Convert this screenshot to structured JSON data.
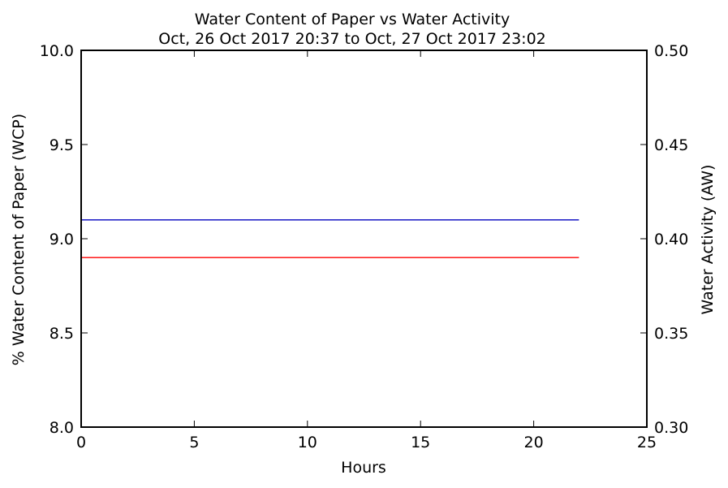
{
  "chart_data": {
    "type": "line",
    "title": "Water Content of Paper vs Water Activity",
    "subtitle": "Oct, 26 Oct 2017 20:37 to Oct, 27 Oct 2017 23:02",
    "xlabel": "Hours",
    "ylabel_left": "% Water Content of Paper (WCP)",
    "ylabel_right": "Water Activity (AW)",
    "xlim": [
      0,
      25
    ],
    "ylim_left": [
      8.0,
      10.0
    ],
    "ylim_right": [
      0.3,
      0.5
    ],
    "x_ticks": [
      "0",
      "5",
      "10",
      "15",
      "20",
      "25"
    ],
    "y_left_ticks": [
      "8.0",
      "8.5",
      "9.0",
      "9.5",
      "10.0"
    ],
    "y_right_ticks": [
      "0.30",
      "0.35",
      "0.40",
      "0.45",
      "0.50"
    ],
    "grid": false,
    "series": [
      {
        "axis": "left",
        "color": "#ff0000",
        "x": [
          0,
          22
        ],
        "y": [
          8.9,
          8.9
        ]
      },
      {
        "axis": "right",
        "color": "#0000bf",
        "x": [
          0,
          22
        ],
        "y": [
          0.41,
          0.41
        ]
      }
    ],
    "colors": {
      "left_axis_label": "#ff0000",
      "right_axis_label": "#0000bf"
    }
  }
}
